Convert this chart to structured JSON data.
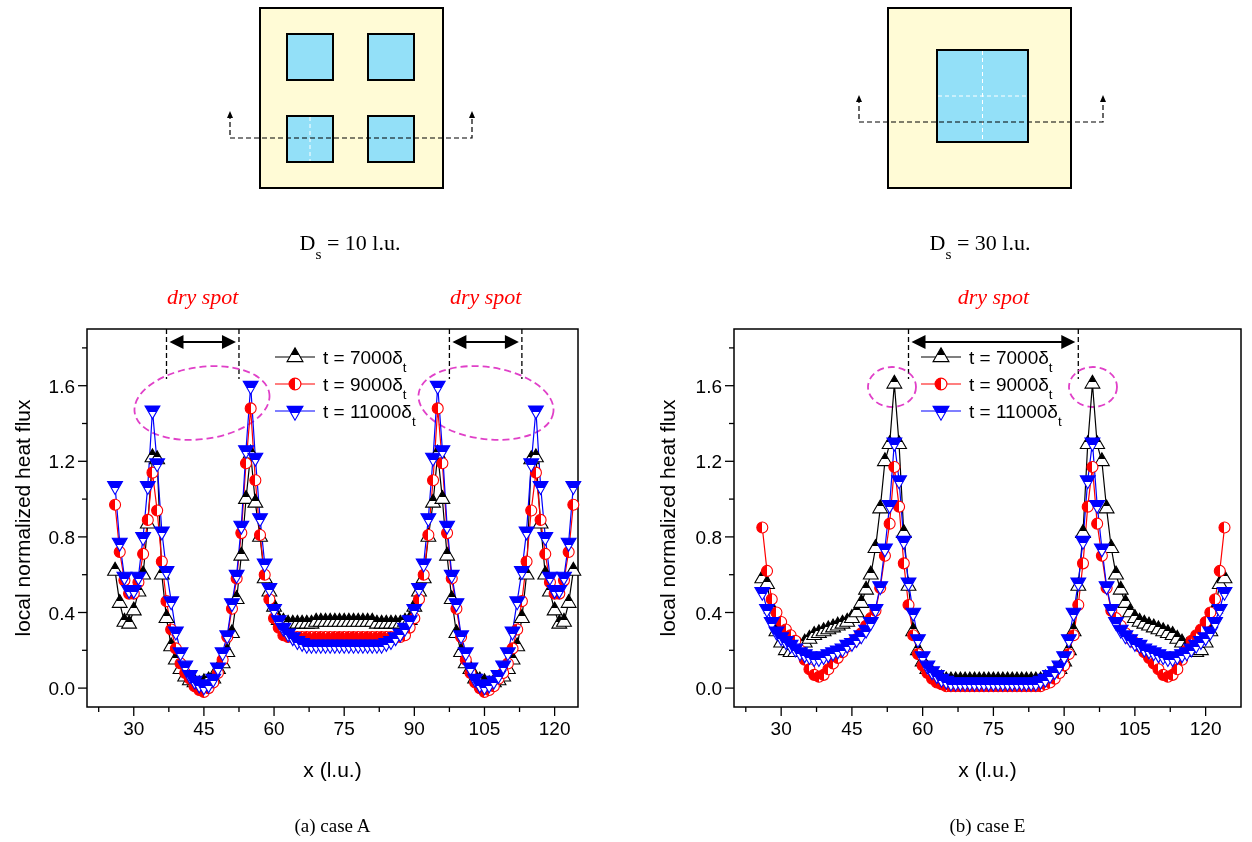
{
  "chart_data": [
    {
      "type": "line",
      "title": "(a) case A",
      "xlabel": "x (l.u.)",
      "ylabel": "local normalized heat flux",
      "annotations": [
        "D$_{s}$ = 10 l.u.",
        "dry spot",
        "dry spot"
      ],
      "ref_lines": [
        {
          "axis": "x",
          "value": 37,
          "line_style": "dashed",
          "color": "#000000"
        },
        {
          "axis": "x",
          "value": 52.5,
          "line_style": "dashed",
          "color": "#000000"
        },
        {
          "axis": "x",
          "value": 97.5,
          "line_style": "dashed",
          "color": "#000000"
        },
        {
          "axis": "x",
          "value": 113,
          "line_style": "dashed",
          "color": "#000000"
        }
      ],
      "xlim": [
        20,
        125
      ],
      "ylim": [
        -0.1,
        1.9
      ],
      "xticks": [
        {
          "value": 22.5,
          "label": null
        },
        30,
        {
          "value": 37.5,
          "label": null
        },
        45,
        {
          "value": 52.5,
          "label": null
        },
        60,
        {
          "value": 67.5,
          "label": null
        },
        75,
        {
          "value": 82.5,
          "label": null
        },
        90,
        {
          "value": 97.5,
          "label": null
        },
        105,
        {
          "value": 112.5,
          "label": null
        },
        120
      ],
      "yticks": [
        {
          "value": 0,
          "label": "0.0"
        },
        {
          "value": 0.2,
          "label": null
        },
        {
          "value": 0.4,
          "label": "0.4"
        },
        {
          "value": 0.6,
          "label": null
        },
        {
          "value": 0.8,
          "label": "0.8"
        },
        {
          "value": 1.0,
          "label": null
        },
        {
          "value": 1.2,
          "label": "1.2"
        },
        {
          "value": 1.4,
          "label": null
        },
        {
          "value": 1.6,
          "label": "1.6"
        },
        {
          "value": 1.8,
          "label": null
        }
      ],
      "grid": false,
      "legend": "top",
      "line_style": "solid",
      "x": [
        26,
        27,
        28,
        29,
        30,
        31,
        32,
        33,
        34,
        35,
        36,
        37,
        38,
        39,
        40,
        41,
        42,
        43,
        44,
        45,
        46,
        47,
        48,
        49,
        50,
        51,
        52,
        53,
        54,
        55,
        56,
        57,
        58,
        59,
        60,
        61,
        62,
        63,
        64,
        65,
        66,
        67,
        68,
        69,
        70,
        71,
        72,
        73,
        74,
        75,
        76,
        77,
        78,
        79,
        80,
        81,
        82,
        83,
        84,
        85,
        86,
        87,
        88,
        89,
        90,
        91,
        92,
        93,
        94,
        95,
        96,
        97,
        98,
        99,
        100,
        101,
        102,
        103,
        104,
        105,
        106,
        107,
        108,
        109,
        110,
        111,
        112,
        113,
        114,
        115,
        116,
        117,
        118,
        119,
        120,
        121,
        122,
        123,
        124
      ],
      "series": [
        {
          "name": "t = 7000δ$_{t}$",
          "color": "#000000",
          "marker": "triangle",
          "values": [
            0.62,
            0.45,
            0.35,
            0.34,
            0.41,
            0.51,
            0.6,
            0.87,
            1.22,
            1.21,
            0.6,
            0.37,
            0.22,
            0.15,
            0.1,
            0.06,
            0.04,
            0.03,
            0.02,
            0.03,
            0.04,
            0.05,
            0.1,
            0.13,
            0.19,
            0.29,
            0.47,
            0.7,
            1.0,
            1.24,
            0.98,
            0.8,
            0.58,
            0.51,
            0.43,
            0.36,
            0.35,
            0.34,
            0.34,
            0.34,
            0.34,
            0.34,
            0.34,
            0.35,
            0.35,
            0.35,
            0.35,
            0.35,
            0.35,
            0.35,
            0.35,
            0.35,
            0.35,
            0.35,
            0.35,
            0.35,
            0.34,
            0.34,
            0.34,
            0.34,
            0.34,
            0.34,
            0.35,
            0.36,
            0.43,
            0.51,
            0.58,
            0.8,
            0.98,
            1.24,
            1.0,
            0.7,
            0.47,
            0.29,
            0.19,
            0.13,
            0.1,
            0.05,
            0.04,
            0.03,
            0.02,
            0.03,
            0.04,
            0.06,
            0.1,
            0.15,
            0.22,
            0.37,
            0.6,
            1.21,
            1.22,
            0.87,
            0.6,
            0.51,
            0.41,
            0.34,
            0.35,
            0.45,
            0.62
          ]
        },
        {
          "name": "t = 9000δ$_{t}$",
          "color": "#ff0000",
          "marker": "circle",
          "values": [
            0.97,
            0.72,
            0.57,
            0.5,
            0.5,
            0.56,
            0.71,
            0.89,
            1.14,
            0.94,
            0.67,
            0.46,
            0.31,
            0.21,
            0.13,
            0.08,
            0.05,
            0.01,
            -0.01,
            -0.02,
            0.0,
            0.03,
            0.08,
            0.15,
            0.27,
            0.42,
            0.58,
            0.82,
            1.19,
            1.48,
            1.1,
            0.81,
            0.6,
            0.47,
            0.37,
            0.32,
            0.28,
            0.27,
            0.27,
            0.27,
            0.27,
            0.27,
            0.27,
            0.27,
            0.27,
            0.27,
            0.27,
            0.27,
            0.27,
            0.27,
            0.27,
            0.27,
            0.27,
            0.27,
            0.27,
            0.27,
            0.27,
            0.27,
            0.27,
            0.27,
            0.27,
            0.27,
            0.28,
            0.32,
            0.37,
            0.47,
            0.6,
            0.81,
            1.1,
            1.48,
            1.19,
            0.82,
            0.58,
            0.42,
            0.27,
            0.15,
            0.08,
            0.03,
            0.0,
            -0.02,
            -0.01,
            0.01,
            0.05,
            0.08,
            0.13,
            0.21,
            0.31,
            0.46,
            0.67,
            0.94,
            1.14,
            0.89,
            0.71,
            0.56,
            0.5,
            0.5,
            0.57,
            0.72,
            0.97
          ]
        },
        {
          "name": "t = 11000δ$_{t}$",
          "color": "#0000ff",
          "marker": "triangle-down",
          "values": [
            1.07,
            0.77,
            0.59,
            0.52,
            0.52,
            0.59,
            0.8,
            1.07,
            1.47,
            1.19,
            0.83,
            0.62,
            0.46,
            0.3,
            0.19,
            0.12,
            0.07,
            0.04,
            0.02,
            0.01,
            0.02,
            0.05,
            0.11,
            0.19,
            0.28,
            0.45,
            0.6,
            0.86,
            1.26,
            1.6,
            1.22,
            0.9,
            0.66,
            0.53,
            0.42,
            0.36,
            0.32,
            0.29,
            0.27,
            0.25,
            0.24,
            0.23,
            0.23,
            0.23,
            0.23,
            0.23,
            0.23,
            0.23,
            0.23,
            0.23,
            0.23,
            0.23,
            0.23,
            0.23,
            0.23,
            0.23,
            0.23,
            0.23,
            0.24,
            0.25,
            0.27,
            0.29,
            0.32,
            0.36,
            0.42,
            0.53,
            0.66,
            0.9,
            1.22,
            1.6,
            1.26,
            0.86,
            0.6,
            0.45,
            0.28,
            0.19,
            0.11,
            0.05,
            0.02,
            0.01,
            0.02,
            0.04,
            0.07,
            0.12,
            0.19,
            0.3,
            0.46,
            0.62,
            0.83,
            1.19,
            1.47,
            1.07,
            0.8,
            0.59,
            0.52,
            0.52,
            0.59,
            0.77,
            1.07
          ]
        }
      ]
    },
    {
      "type": "line",
      "title": "(b) case E",
      "xlabel": "x (l.u.)",
      "ylabel": "local normalized heat flux",
      "annotations": [
        "D$_{s}$ = 30 l.u.",
        "dry spot"
      ],
      "ref_lines": [
        {
          "axis": "x",
          "value": 57,
          "line_style": "dashed",
          "color": "#000000"
        },
        {
          "axis": "x",
          "value": 93,
          "line_style": "dashed",
          "color": "#000000"
        }
      ],
      "xlim": [
        20,
        127.5
      ],
      "ylim": [
        -0.1,
        1.9
      ],
      "xticks": [
        {
          "value": 22.5,
          "label": null
        },
        30,
        {
          "value": 37.5,
          "label": null
        },
        45,
        {
          "value": 52.5,
          "label": null
        },
        60,
        {
          "value": 67.5,
          "label": null
        },
        75,
        {
          "value": 82.5,
          "label": null
        },
        90,
        {
          "value": 97.5,
          "label": null
        },
        105,
        {
          "value": 112.5,
          "label": null
        },
        120
      ],
      "yticks": [
        {
          "value": 0,
          "label": "0.0"
        },
        {
          "value": 0.2,
          "label": null
        },
        {
          "value": 0.4,
          "label": "0.4"
        },
        {
          "value": 0.6,
          "label": null
        },
        {
          "value": 0.8,
          "label": "0.8"
        },
        {
          "value": 1.0,
          "label": null
        },
        {
          "value": 1.2,
          "label": "1.2"
        },
        {
          "value": 1.4,
          "label": null
        },
        {
          "value": 1.6,
          "label": "1.6"
        },
        {
          "value": 1.8,
          "label": null
        }
      ],
      "grid": false,
      "legend": "top",
      "line_style": "solid",
      "x": [
        26,
        27,
        28,
        29,
        30,
        31,
        32,
        33,
        34,
        35,
        36,
        37,
        38,
        39,
        40,
        41,
        42,
        43,
        44,
        45,
        46,
        47,
        48,
        49,
        50,
        51,
        52,
        53,
        54,
        55,
        56,
        57,
        58,
        59,
        60,
        61,
        62,
        63,
        64,
        65,
        66,
        67,
        68,
        69,
        70,
        71,
        72,
        73,
        74,
        75,
        76,
        77,
        78,
        79,
        80,
        81,
        82,
        83,
        84,
        85,
        86,
        87,
        88,
        89,
        90,
        91,
        92,
        93,
        94,
        95,
        96,
        97,
        98,
        99,
        100,
        101,
        102,
        103,
        104,
        105,
        106,
        107,
        108,
        109,
        110,
        111,
        112,
        113,
        114,
        115,
        116,
        117,
        118,
        119,
        120,
        121,
        122,
        123,
        124
      ],
      "series": [
        {
          "name": "t = 7000δ$_{t}$",
          "color": "#000000",
          "marker": "triangle",
          "values": [
            0.58,
            0.55,
            0.42,
            0.3,
            0.24,
            0.2,
            0.19,
            0.19,
            0.22,
            0.24,
            0.26,
            0.28,
            0.29,
            0.3,
            0.31,
            0.32,
            0.33,
            0.34,
            0.35,
            0.37,
            0.4,
            0.45,
            0.52,
            0.6,
            0.74,
            0.95,
            1.2,
            1.29,
            1.61,
            1.29,
            0.82,
            0.54,
            0.3,
            0.2,
            0.14,
            0.1,
            0.08,
            0.06,
            0.05,
            0.04,
            0.04,
            0.04,
            0.04,
            0.04,
            0.04,
            0.04,
            0.04,
            0.04,
            0.04,
            0.04,
            0.04,
            0.04,
            0.04,
            0.04,
            0.04,
            0.04,
            0.04,
            0.04,
            0.04,
            0.04,
            0.05,
            0.06,
            0.08,
            0.1,
            0.14,
            0.2,
            0.3,
            0.54,
            0.82,
            1.29,
            1.61,
            1.29,
            1.2,
            0.95,
            0.74,
            0.6,
            0.52,
            0.45,
            0.4,
            0.37,
            0.35,
            0.34,
            0.33,
            0.32,
            0.31,
            0.3,
            0.29,
            0.28,
            0.26,
            0.24,
            0.22,
            0.19,
            0.19,
            0.2,
            0.24,
            0.3,
            0.42,
            0.55,
            0.58
          ]
        },
        {
          "name": "t = 9000δ$_{t}$",
          "color": "#ff0000",
          "marker": "circle",
          "values": [
            0.85,
            0.62,
            0.47,
            0.4,
            0.35,
            0.31,
            0.28,
            0.25,
            0.2,
            0.15,
            0.1,
            0.07,
            0.06,
            0.07,
            0.1,
            0.13,
            0.16,
            0.19,
            0.22,
            0.24,
            0.26,
            0.29,
            0.33,
            0.37,
            0.41,
            0.53,
            0.7,
            0.87,
            1.17,
            0.96,
            0.66,
            0.44,
            0.28,
            0.18,
            0.12,
            0.08,
            0.05,
            0.03,
            0.02,
            0.01,
            0.01,
            0.01,
            0.01,
            0.01,
            0.01,
            0.01,
            0.01,
            0.01,
            0.01,
            0.01,
            0.01,
            0.01,
            0.01,
            0.01,
            0.01,
            0.01,
            0.01,
            0.01,
            0.01,
            0.01,
            0.02,
            0.03,
            0.05,
            0.08,
            0.12,
            0.18,
            0.28,
            0.44,
            0.66,
            0.96,
            1.17,
            0.87,
            0.7,
            0.53,
            0.41,
            0.37,
            0.33,
            0.29,
            0.26,
            0.24,
            0.22,
            0.19,
            0.16,
            0.13,
            0.1,
            0.07,
            0.06,
            0.07,
            0.1,
            0.15,
            0.2,
            0.25,
            0.28,
            0.31,
            0.35,
            0.4,
            0.47,
            0.62,
            0.85
          ]
        },
        {
          "name": "t = 11000δ$_{t}$",
          "color": "#0000ff",
          "marker": "triangle-down",
          "values": [
            0.51,
            0.42,
            0.35,
            0.3,
            0.27,
            0.25,
            0.23,
            0.21,
            0.19,
            0.18,
            0.17,
            0.16,
            0.16,
            0.17,
            0.18,
            0.19,
            0.2,
            0.21,
            0.23,
            0.24,
            0.26,
            0.28,
            0.31,
            0.35,
            0.42,
            0.54,
            0.74,
            0.97,
            1.3,
            1.1,
            0.78,
            0.56,
            0.4,
            0.26,
            0.17,
            0.12,
            0.09,
            0.07,
            0.05,
            0.04,
            0.03,
            0.03,
            0.03,
            0.03,
            0.03,
            0.03,
            0.03,
            0.03,
            0.03,
            0.03,
            0.03,
            0.03,
            0.03,
            0.03,
            0.03,
            0.03,
            0.03,
            0.03,
            0.03,
            0.04,
            0.05,
            0.07,
            0.09,
            0.12,
            0.17,
            0.26,
            0.4,
            0.56,
            0.78,
            1.1,
            1.3,
            0.97,
            0.74,
            0.54,
            0.42,
            0.35,
            0.31,
            0.28,
            0.26,
            0.24,
            0.23,
            0.21,
            0.2,
            0.19,
            0.18,
            0.17,
            0.16,
            0.16,
            0.17,
            0.18,
            0.19,
            0.21,
            0.23,
            0.25,
            0.27,
            0.3,
            0.35,
            0.42,
            0.51
          ]
        }
      ]
    }
  ]
}
